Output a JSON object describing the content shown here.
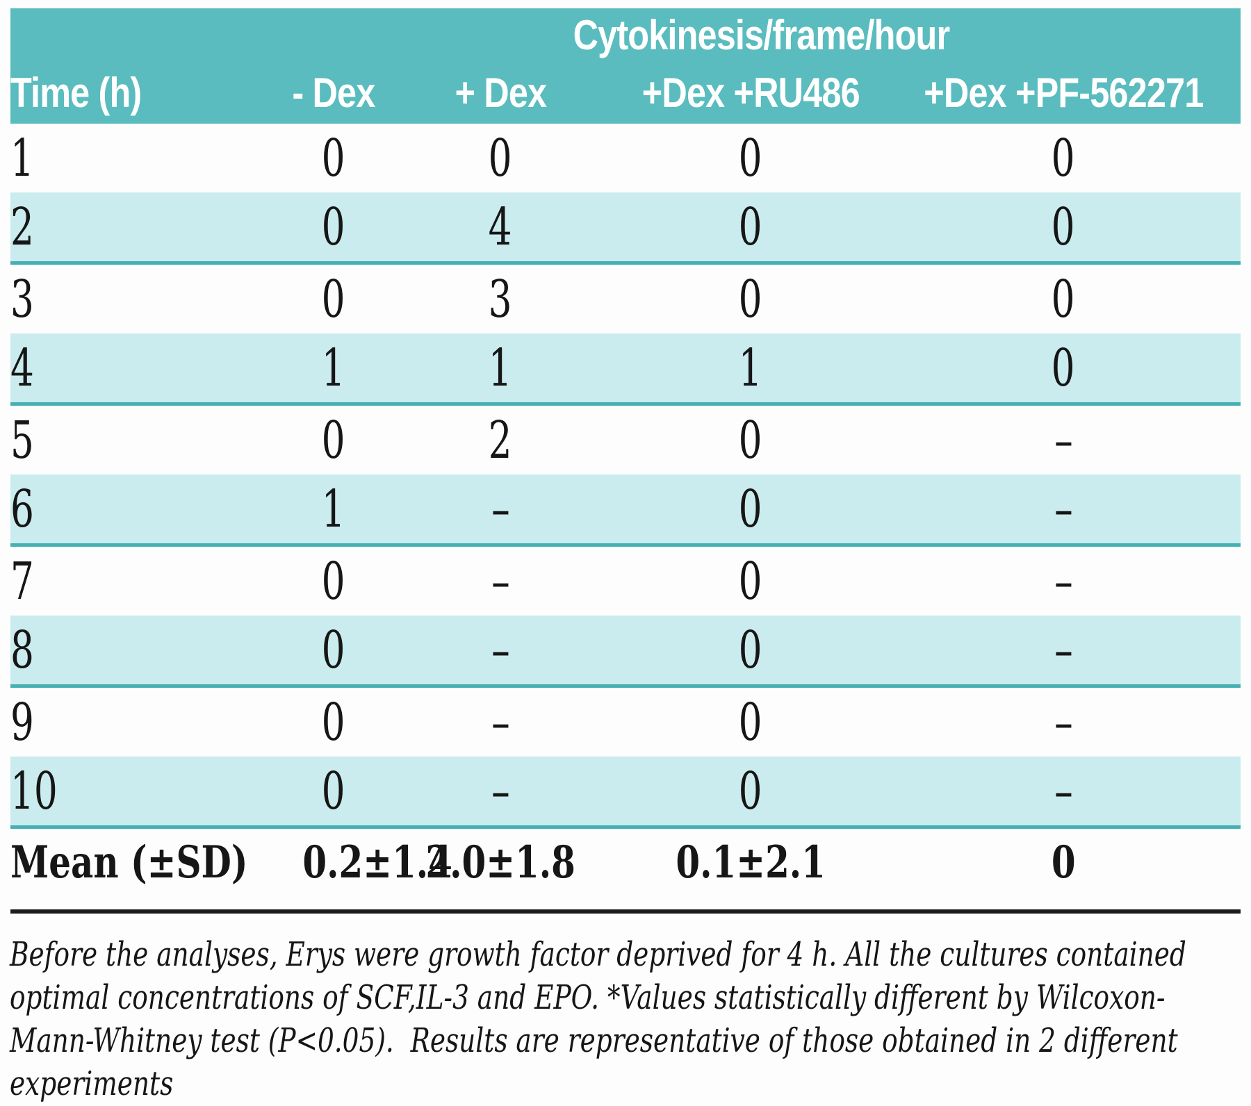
{
  "table": {
    "group_header": "Cytokinesis/frame/hour",
    "columns": [
      "Time (h)",
      "- Dex",
      "+ Dex",
      "+Dex +RU486",
      "+Dex +PF-562271"
    ],
    "rows": [
      {
        "time": "1",
        "values": [
          "0",
          "0",
          "0",
          "0"
        ]
      },
      {
        "time": "2",
        "values": [
          "0",
          "4",
          "0",
          "0"
        ]
      },
      {
        "time": "3",
        "values": [
          "0",
          "3",
          "0",
          "0"
        ]
      },
      {
        "time": "4",
        "values": [
          "1",
          "1",
          "1",
          "0"
        ]
      },
      {
        "time": "5",
        "values": [
          "0",
          "2",
          "0",
          "–"
        ]
      },
      {
        "time": "6",
        "values": [
          "1",
          "–",
          "0",
          "–"
        ]
      },
      {
        "time": "7",
        "values": [
          "0",
          "–",
          "0",
          "–"
        ]
      },
      {
        "time": "8",
        "values": [
          "0",
          "–",
          "0",
          "–"
        ]
      },
      {
        "time": "9",
        "values": [
          "0",
          "–",
          "0",
          "–"
        ]
      },
      {
        "time": "10",
        "values": [
          "0",
          "–",
          "0",
          "–"
        ]
      }
    ],
    "summary": {
      "label": "Mean (±SD)",
      "values": [
        "0.2±1.4",
        "2.0±1.8",
        "0.1±2.1",
        "0"
      ]
    }
  },
  "footnote": {
    "lines": [
      "Before the analyses, Erys were growth factor deprived for 4 h. All the cultures contained",
      "optimal concentrations of SCF,IL-3 and EPO. *Values statistically different by Wilcoxon-",
      "Mann-Whitney test (P<0.05).  Results are representative of those obtained in 2 different",
      "experiments"
    ]
  },
  "chart_data": {
    "type": "table",
    "title": "Cytokinesis/frame/hour",
    "columns": [
      "Time (h)",
      "- Dex",
      "+ Dex",
      "+Dex +RU486",
      "+Dex +PF-562271"
    ],
    "rows": [
      [
        "1",
        "0",
        "0",
        "0",
        "0"
      ],
      [
        "2",
        "0",
        "4",
        "0",
        "0"
      ],
      [
        "3",
        "0",
        "3",
        "0",
        "0"
      ],
      [
        "4",
        "1",
        "1",
        "1",
        "0"
      ],
      [
        "5",
        "0",
        "2",
        "0",
        "-"
      ],
      [
        "6",
        "1",
        "-",
        "0",
        "-"
      ],
      [
        "7",
        "0",
        "-",
        "0",
        "-"
      ],
      [
        "8",
        "0",
        "-",
        "0",
        "-"
      ],
      [
        "9",
        "0",
        "-",
        "0",
        "-"
      ],
      [
        "10",
        "0",
        "-",
        "0",
        "-"
      ],
      [
        "Mean (±SD)",
        "0.2±1.4",
        "2.0±1.8",
        "0.1±2.1",
        "0"
      ]
    ]
  },
  "colors": {
    "header-bg": "#5abcbe",
    "header-text": "#ffffff",
    "row-shade": "#cbecee",
    "row-divider": "#45b0b3",
    "text": "#161616",
    "rule": "#1c1c1c",
    "background": "#fdfdfd"
  }
}
